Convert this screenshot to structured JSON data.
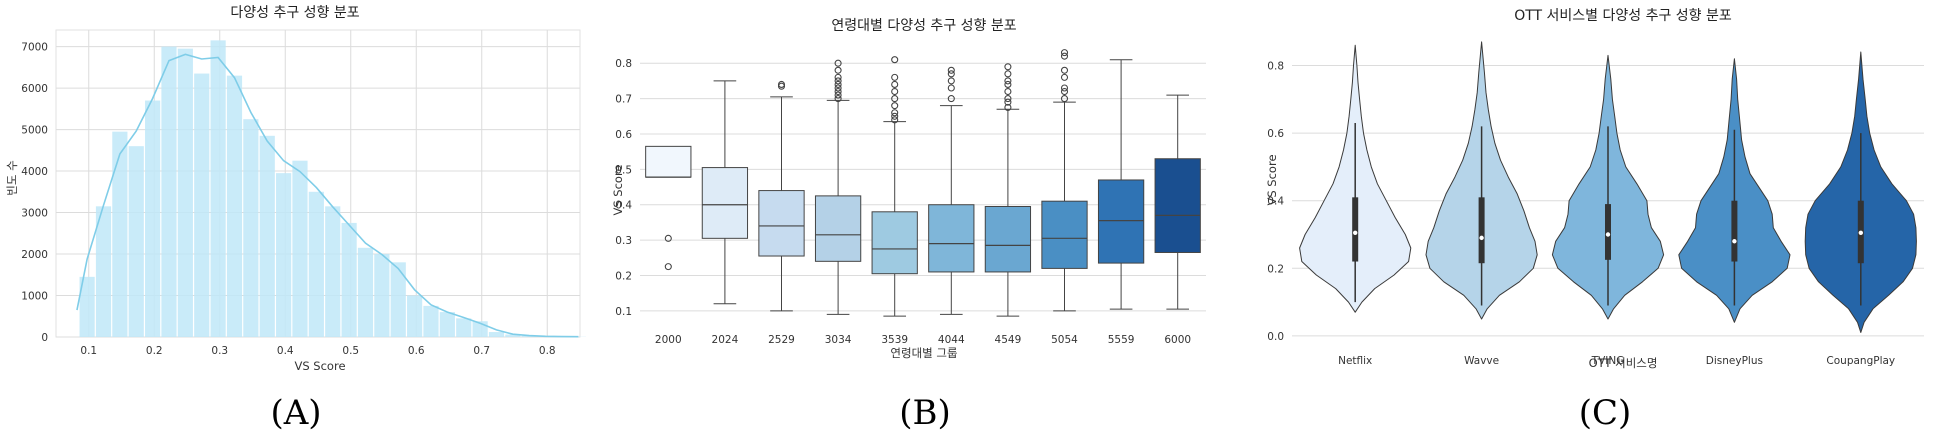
{
  "panels": [
    "(A)",
    "(B)",
    "(C)"
  ],
  "chart_data": [
    {
      "type": "bar",
      "title": "다양성 추구 성향 분포",
      "xlabel": "VS Score",
      "ylabel": "빈도 수",
      "xlim": [
        0.05,
        0.85
      ],
      "ylim": [
        0,
        7400
      ],
      "xticks": [
        "0.1",
        "0.2",
        "0.3",
        "0.4",
        "0.5",
        "0.6",
        "0.7",
        "0.8"
      ],
      "yticks": [
        "0",
        "1000",
        "2000",
        "3000",
        "4000",
        "5000",
        "6000",
        "7000"
      ],
      "grid": true,
      "bin_width": 0.025,
      "bin_start": 0.085,
      "values": [
        1450,
        3150,
        4950,
        4600,
        5700,
        7000,
        6950,
        6350,
        7150,
        6300,
        5250,
        4850,
        3950,
        4250,
        3500,
        3150,
        2750,
        2150,
        2000,
        1800,
        1000,
        750,
        600,
        450,
        380,
        120,
        60,
        30,
        15,
        10,
        5
      ],
      "kde": true,
      "color": "#bfe8f8",
      "line_color": "#7fcde8"
    },
    {
      "type": "box",
      "title": "연령대별 다양성 추구 성향 분포",
      "xlabel": "연령대별 그룹",
      "ylabel": "VS Score",
      "ylim": [
        0.06,
        0.86
      ],
      "yticks": [
        "0.1",
        "0.2",
        "0.3",
        "0.4",
        "0.5",
        "0.6",
        "0.7",
        "0.8"
      ],
      "grid": true,
      "categories": [
        "2000",
        "2024",
        "2529",
        "3034",
        "3539",
        "4044",
        "4549",
        "5054",
        "5559",
        "6000"
      ],
      "boxes": [
        {
          "q1": 0.478,
          "median": 0.478,
          "q3": 0.565,
          "whisker_low": null,
          "whisker_high": null,
          "outliers": [
            0.225,
            0.305
          ],
          "color": "#f1f7fd"
        },
        {
          "q1": 0.305,
          "median": 0.4,
          "q3": 0.505,
          "whisker_low": 0.12,
          "whisker_high": 0.75,
          "outliers": [],
          "color": "#deebf7"
        },
        {
          "q1": 0.255,
          "median": 0.34,
          "q3": 0.44,
          "whisker_low": 0.1,
          "whisker_high": 0.705,
          "outliers": [
            0.735,
            0.74
          ],
          "color": "#c6dbef"
        },
        {
          "q1": 0.24,
          "median": 0.315,
          "q3": 0.425,
          "whisker_low": 0.09,
          "whisker_high": 0.695,
          "outliers": [
            0.7,
            0.71,
            0.72,
            0.73,
            0.74,
            0.75,
            0.76,
            0.78,
            0.8
          ],
          "color": "#b4d1e7"
        },
        {
          "q1": 0.205,
          "median": 0.275,
          "q3": 0.38,
          "whisker_low": 0.085,
          "whisker_high": 0.635,
          "outliers": [
            0.64,
            0.65,
            0.66,
            0.68,
            0.7,
            0.72,
            0.74,
            0.76,
            0.81
          ],
          "color": "#9ecae1"
        },
        {
          "q1": 0.21,
          "median": 0.29,
          "q3": 0.4,
          "whisker_low": 0.09,
          "whisker_high": 0.68,
          "outliers": [
            0.7,
            0.73,
            0.75,
            0.77,
            0.78
          ],
          "color": "#7fb6d9"
        },
        {
          "q1": 0.21,
          "median": 0.285,
          "q3": 0.395,
          "whisker_low": 0.085,
          "whisker_high": 0.67,
          "outliers": [
            0.675,
            0.69,
            0.7,
            0.72,
            0.74,
            0.75,
            0.77,
            0.79
          ],
          "color": "#6aa7d1"
        },
        {
          "q1": 0.22,
          "median": 0.305,
          "q3": 0.41,
          "whisker_low": 0.1,
          "whisker_high": 0.69,
          "outliers": [
            0.7,
            0.72,
            0.73,
            0.76,
            0.78,
            0.82,
            0.83
          ],
          "color": "#4a8fc4"
        },
        {
          "q1": 0.235,
          "median": 0.355,
          "q3": 0.47,
          "whisker_low": 0.105,
          "whisker_high": 0.81,
          "outliers": [],
          "color": "#2f73b4"
        },
        {
          "q1": 0.265,
          "median": 0.37,
          "q3": 0.53,
          "whisker_low": 0.105,
          "whisker_high": 0.71,
          "outliers": [],
          "color": "#1a4f90"
        }
      ]
    },
    {
      "type": "violin",
      "title": "OTT 서비스별 다양성 추구 성향 분포",
      "xlabel": "OTT 서비스명",
      "ylabel": "VS Score",
      "ylim": [
        -0.03,
        0.92
      ],
      "yticks": [
        "0.0",
        "0.2",
        "0.4",
        "0.6",
        "0.8"
      ],
      "grid": true,
      "categories": [
        "Netflix",
        "Wavve",
        "TVING",
        "DisneyPlus",
        "CoupangPlay"
      ],
      "violins": [
        {
          "min": 0.07,
          "max": 0.86,
          "q1": 0.22,
          "median": 0.305,
          "q3": 0.41,
          "whisker_low": 0.1,
          "whisker_high": 0.63,
          "color": "#e4eefa",
          "profile": [
            [
              0.07,
              0.0
            ],
            [
              0.1,
              0.12
            ],
            [
              0.14,
              0.35
            ],
            [
              0.18,
              0.7
            ],
            [
              0.22,
              0.96
            ],
            [
              0.26,
              1.0
            ],
            [
              0.3,
              0.9
            ],
            [
              0.35,
              0.72
            ],
            [
              0.4,
              0.56
            ],
            [
              0.45,
              0.4
            ],
            [
              0.5,
              0.29
            ],
            [
              0.55,
              0.21
            ],
            [
              0.6,
              0.15
            ],
            [
              0.65,
              0.11
            ],
            [
              0.7,
              0.08
            ],
            [
              0.75,
              0.05
            ],
            [
              0.8,
              0.03
            ],
            [
              0.86,
              0.0
            ]
          ]
        },
        {
          "min": 0.05,
          "max": 0.87,
          "q1": 0.215,
          "median": 0.29,
          "q3": 0.41,
          "whisker_low": 0.09,
          "whisker_high": 0.62,
          "color": "#b5d4e9",
          "profile": [
            [
              0.05,
              0.0
            ],
            [
              0.08,
              0.1
            ],
            [
              0.12,
              0.32
            ],
            [
              0.16,
              0.68
            ],
            [
              0.2,
              0.93
            ],
            [
              0.24,
              1.0
            ],
            [
              0.28,
              0.96
            ],
            [
              0.32,
              0.86
            ],
            [
              0.37,
              0.76
            ],
            [
              0.42,
              0.64
            ],
            [
              0.47,
              0.48
            ],
            [
              0.52,
              0.34
            ],
            [
              0.57,
              0.24
            ],
            [
              0.62,
              0.17
            ],
            [
              0.67,
              0.12
            ],
            [
              0.72,
              0.08
            ],
            [
              0.78,
              0.05
            ],
            [
              0.87,
              0.0
            ]
          ]
        },
        {
          "min": 0.05,
          "max": 0.83,
          "q1": 0.225,
          "median": 0.3,
          "q3": 0.39,
          "whisker_low": 0.09,
          "whisker_high": 0.62,
          "color": "#7fb6dc",
          "profile": [
            [
              0.05,
              0.0
            ],
            [
              0.08,
              0.1
            ],
            [
              0.12,
              0.3
            ],
            [
              0.16,
              0.62
            ],
            [
              0.2,
              0.9
            ],
            [
              0.24,
              1.0
            ],
            [
              0.28,
              0.94
            ],
            [
              0.32,
              0.78
            ],
            [
              0.36,
              0.72
            ],
            [
              0.4,
              0.7
            ],
            [
              0.45,
              0.52
            ],
            [
              0.5,
              0.32
            ],
            [
              0.55,
              0.22
            ],
            [
              0.6,
              0.16
            ],
            [
              0.65,
              0.12
            ],
            [
              0.7,
              0.08
            ],
            [
              0.76,
              0.05
            ],
            [
              0.83,
              0.0
            ]
          ]
        },
        {
          "min": 0.04,
          "max": 0.82,
          "q1": 0.22,
          "median": 0.28,
          "q3": 0.4,
          "whisker_low": 0.09,
          "whisker_high": 0.61,
          "color": "#4a8fc6",
          "profile": [
            [
              0.04,
              0.0
            ],
            [
              0.08,
              0.1
            ],
            [
              0.12,
              0.32
            ],
            [
              0.16,
              0.68
            ],
            [
              0.2,
              0.95
            ],
            [
              0.24,
              1.0
            ],
            [
              0.28,
              0.84
            ],
            [
              0.32,
              0.7
            ],
            [
              0.36,
              0.68
            ],
            [
              0.4,
              0.6
            ],
            [
              0.44,
              0.44
            ],
            [
              0.48,
              0.28
            ],
            [
              0.53,
              0.19
            ],
            [
              0.58,
              0.13
            ],
            [
              0.63,
              0.1
            ],
            [
              0.7,
              0.06
            ],
            [
              0.76,
              0.04
            ],
            [
              0.82,
              0.0
            ]
          ]
        },
        {
          "min": 0.01,
          "max": 0.84,
          "q1": 0.215,
          "median": 0.305,
          "q3": 0.4,
          "whisker_low": 0.09,
          "whisker_high": 0.6,
          "color": "#2565a8",
          "profile": [
            [
              0.01,
              0.0
            ],
            [
              0.04,
              0.06
            ],
            [
              0.08,
              0.22
            ],
            [
              0.12,
              0.5
            ],
            [
              0.16,
              0.76
            ],
            [
              0.2,
              0.93
            ],
            [
              0.24,
              0.99
            ],
            [
              0.28,
              1.0
            ],
            [
              0.32,
              0.99
            ],
            [
              0.36,
              0.95
            ],
            [
              0.4,
              0.82
            ],
            [
              0.45,
              0.56
            ],
            [
              0.5,
              0.36
            ],
            [
              0.55,
              0.24
            ],
            [
              0.6,
              0.16
            ],
            [
              0.65,
              0.11
            ],
            [
              0.7,
              0.08
            ],
            [
              0.76,
              0.04
            ],
            [
              0.84,
              0.0
            ]
          ]
        }
      ]
    }
  ]
}
